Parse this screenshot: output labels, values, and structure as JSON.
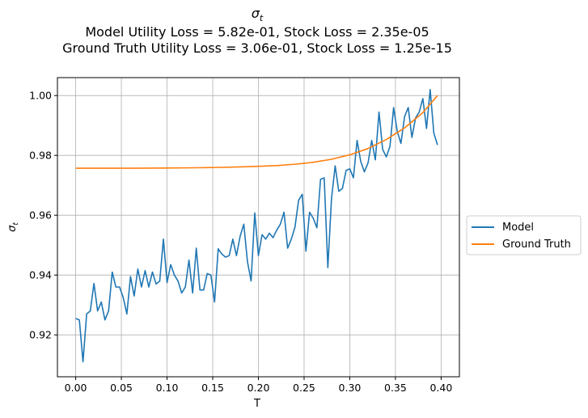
{
  "chart_data": {
    "type": "line",
    "title_symbol": "σ",
    "title_symbol_sub": "t",
    "title_lines": [
      "Model Utility Loss = 5.82e-01, Stock Loss = 2.35e-05",
      "Ground Truth Utility Loss = 3.06e-01, Stock Loss = 1.25e-15"
    ],
    "xlabel": "T",
    "ylabel_symbol": "σ",
    "ylabel_sub": "t",
    "xlim": [
      -0.02,
      0.42
    ],
    "ylim": [
      0.906,
      1.006
    ],
    "x_ticks": [
      0.0,
      0.05,
      0.1,
      0.15,
      0.2,
      0.25,
      0.3,
      0.35,
      0.4
    ],
    "x_tick_labels": [
      "0.00",
      "0.05",
      "0.10",
      "0.15",
      "0.20",
      "0.25",
      "0.30",
      "0.35",
      "0.40"
    ],
    "y_ticks": [
      0.92,
      0.94,
      0.96,
      0.98,
      1.0
    ],
    "y_tick_labels": [
      "0.92",
      "0.94",
      "0.96",
      "0.98",
      "1.00"
    ],
    "grid": true,
    "legend_position": "outside-right",
    "series": [
      {
        "name": "Model",
        "color": "#1f77b4",
        "x": [
          0.0,
          0.004,
          0.008,
          0.012,
          0.016,
          0.02,
          0.024,
          0.028,
          0.032,
          0.036,
          0.04,
          0.044,
          0.048,
          0.052,
          0.056,
          0.06,
          0.064,
          0.068,
          0.072,
          0.076,
          0.08,
          0.084,
          0.088,
          0.092,
          0.096,
          0.1,
          0.104,
          0.108,
          0.112,
          0.116,
          0.12,
          0.124,
          0.128,
          0.132,
          0.136,
          0.14,
          0.144,
          0.148,
          0.152,
          0.156,
          0.16,
          0.164,
          0.168,
          0.172,
          0.176,
          0.18,
          0.184,
          0.188,
          0.192,
          0.196,
          0.2,
          0.204,
          0.208,
          0.212,
          0.216,
          0.22,
          0.224,
          0.228,
          0.232,
          0.236,
          0.24,
          0.244,
          0.248,
          0.252,
          0.256,
          0.26,
          0.264,
          0.268,
          0.272,
          0.276,
          0.28,
          0.284,
          0.288,
          0.292,
          0.296,
          0.3,
          0.304,
          0.308,
          0.312,
          0.316,
          0.32,
          0.324,
          0.328,
          0.332,
          0.336,
          0.34,
          0.344,
          0.348,
          0.352,
          0.356,
          0.36,
          0.364,
          0.368,
          0.372,
          0.376,
          0.38,
          0.384,
          0.388,
          0.392,
          0.396
        ],
        "values": [
          0.9255,
          0.925,
          0.911,
          0.927,
          0.928,
          0.9372,
          0.928,
          0.931,
          0.925,
          0.928,
          0.941,
          0.936,
          0.936,
          0.9325,
          0.927,
          0.9395,
          0.933,
          0.942,
          0.936,
          0.9415,
          0.936,
          0.941,
          0.937,
          0.938,
          0.952,
          0.9375,
          0.9435,
          0.94,
          0.938,
          0.934,
          0.936,
          0.945,
          0.934,
          0.949,
          0.935,
          0.935,
          0.9405,
          0.94,
          0.931,
          0.9488,
          0.947,
          0.946,
          0.9465,
          0.952,
          0.9465,
          0.953,
          0.957,
          0.9445,
          0.938,
          0.9608,
          0.9465,
          0.9535,
          0.952,
          0.954,
          0.9525,
          0.955,
          0.957,
          0.961,
          0.949,
          0.952,
          0.956,
          0.965,
          0.967,
          0.948,
          0.961,
          0.959,
          0.9558,
          0.972,
          0.9725,
          0.9425,
          0.9655,
          0.9765,
          0.968,
          0.969,
          0.975,
          0.9755,
          0.9725,
          0.985,
          0.978,
          0.9745,
          0.9775,
          0.985,
          0.9785,
          0.9945,
          0.982,
          0.9795,
          0.983,
          0.996,
          0.988,
          0.984,
          0.993,
          0.996,
          0.986,
          0.9925,
          0.9945,
          0.999,
          0.989,
          1.002,
          0.9875,
          0.9835
        ]
      },
      {
        "name": "Ground Truth",
        "color": "#ff7f0e",
        "x": [
          0.0,
          0.02,
          0.04,
          0.06,
          0.08,
          0.1,
          0.12,
          0.14,
          0.16,
          0.18,
          0.2,
          0.22,
          0.24,
          0.26,
          0.28,
          0.3,
          0.32,
          0.34,
          0.36,
          0.38,
          0.396
        ],
        "values": [
          0.9757,
          0.9757,
          0.9757,
          0.97572,
          0.97575,
          0.97578,
          0.97583,
          0.9759,
          0.976,
          0.97615,
          0.97635,
          0.9766,
          0.97705,
          0.9777,
          0.9787,
          0.9802,
          0.9823,
          0.9853,
          0.9892,
          0.9943,
          1.0
        ]
      }
    ]
  }
}
